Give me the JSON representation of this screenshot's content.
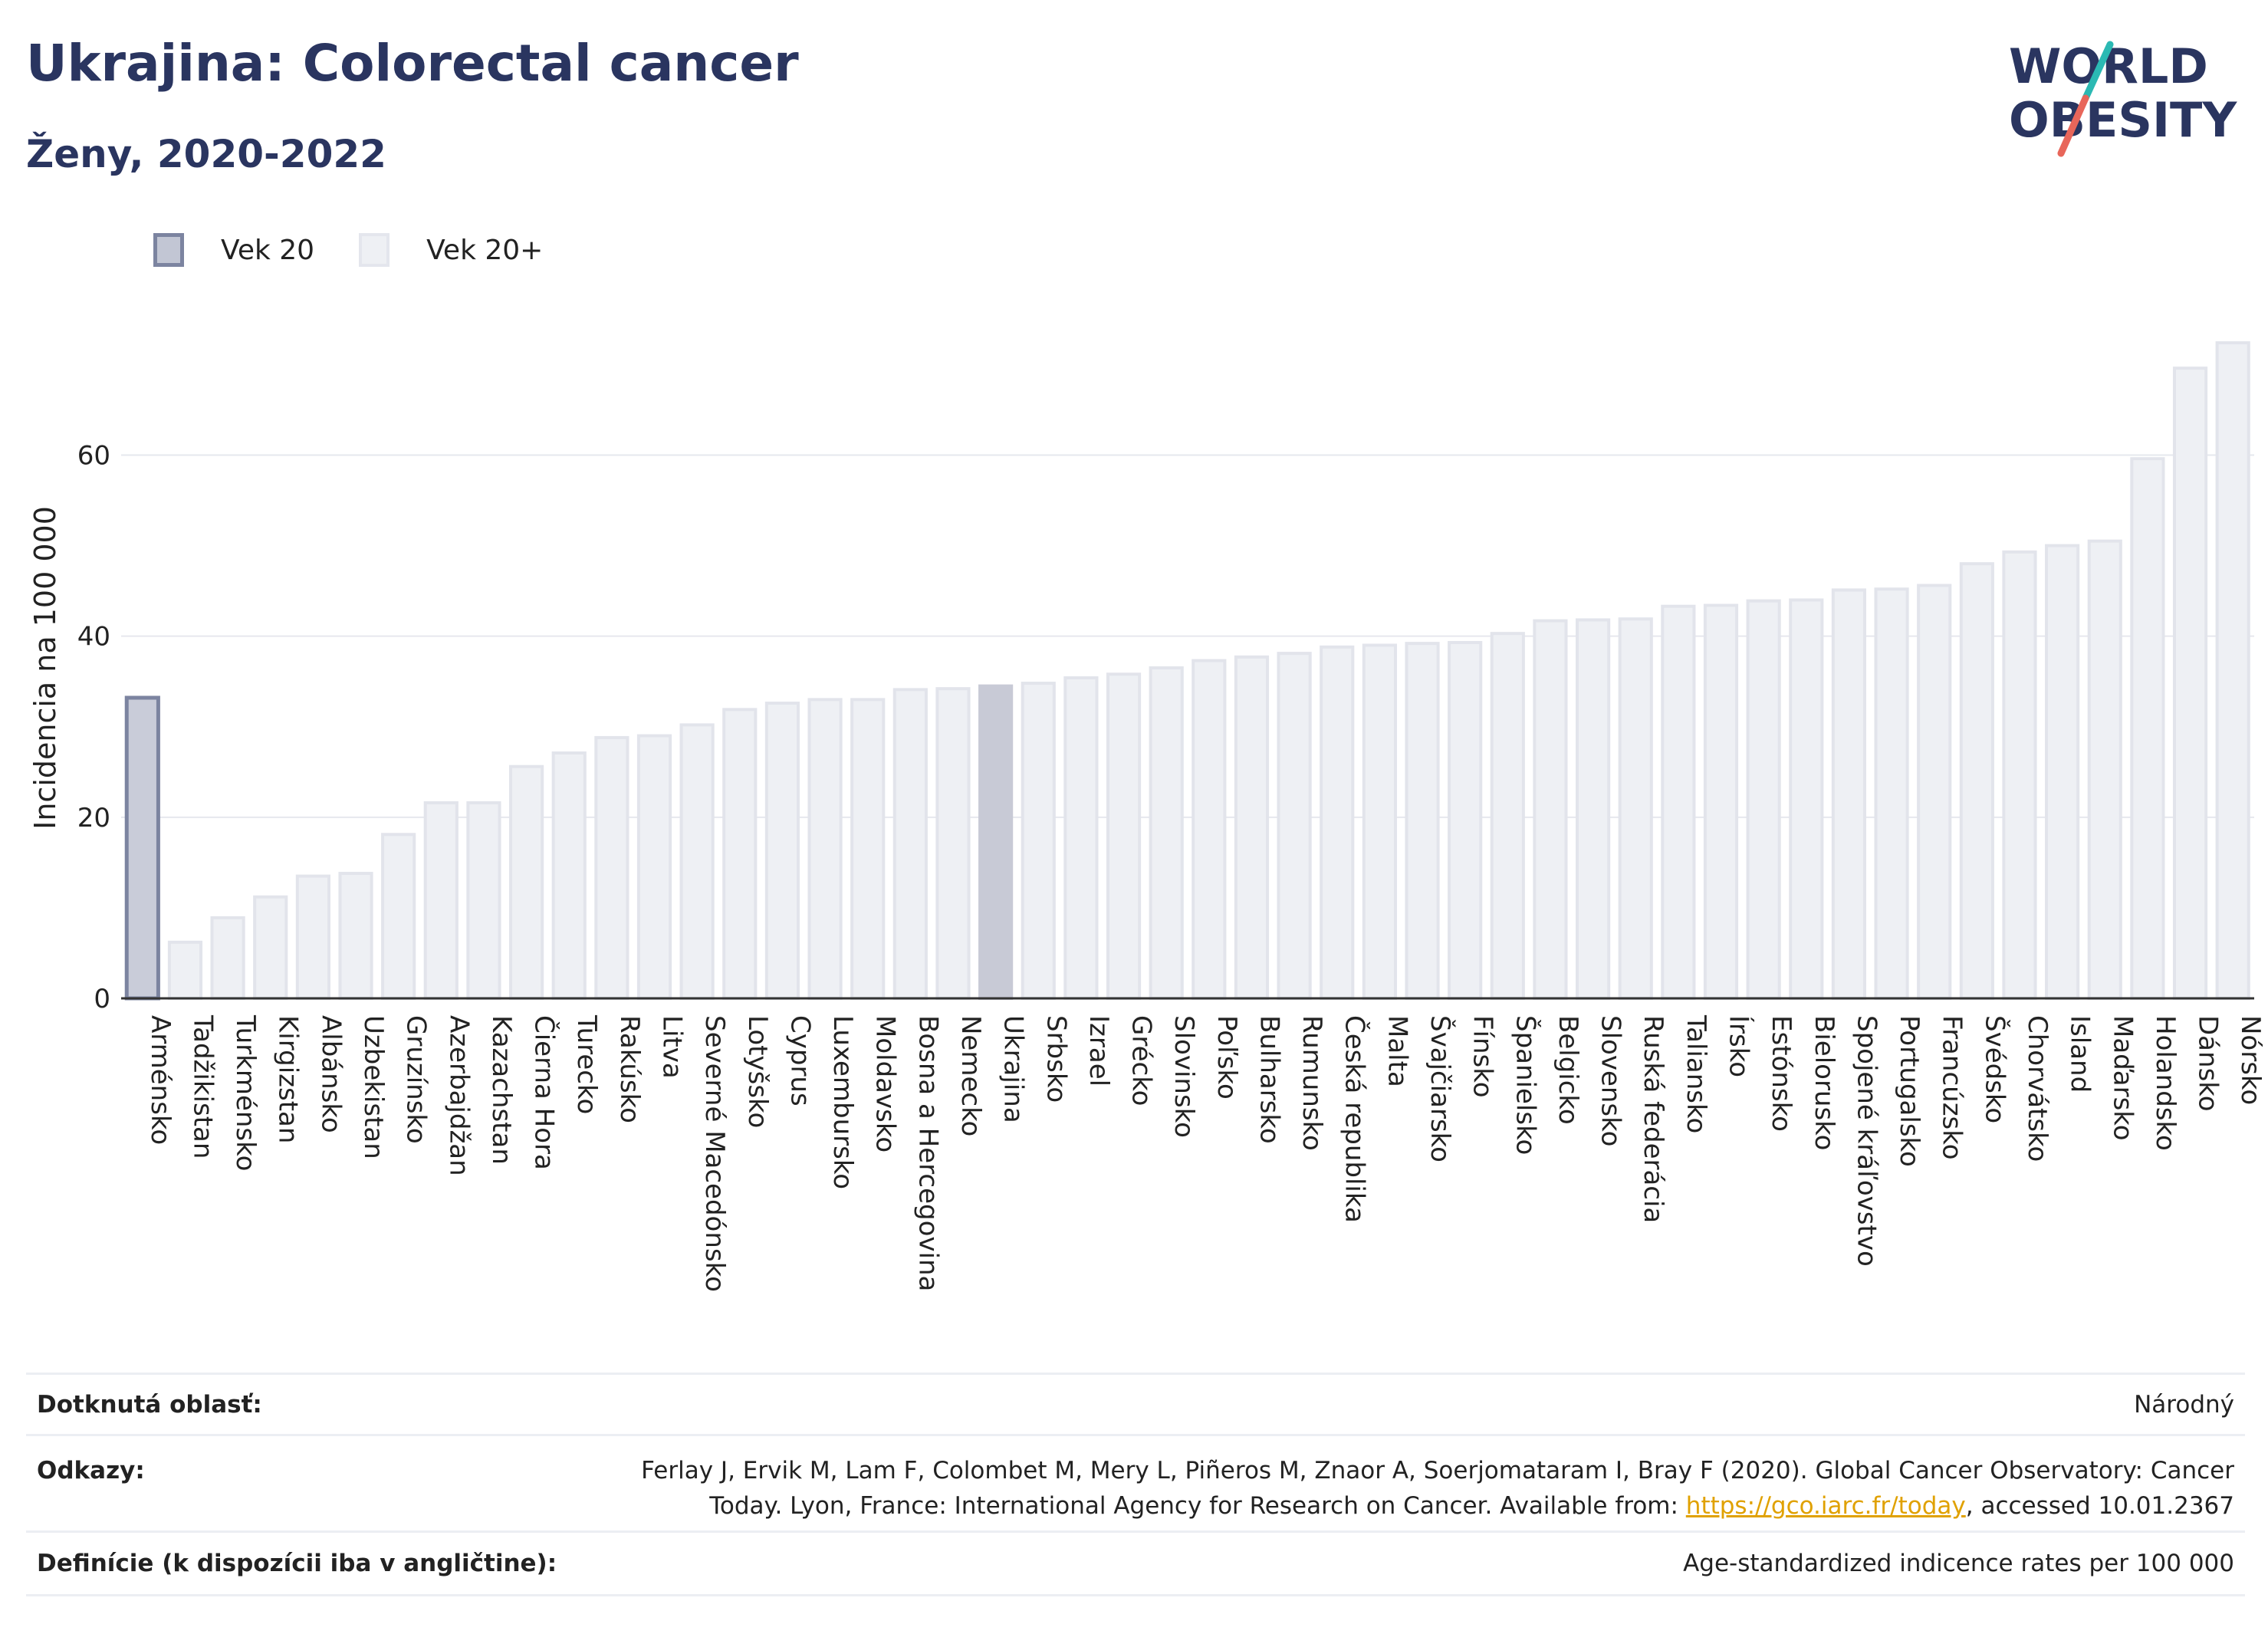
{
  "title": "Ukrajina: Colorectal cancer",
  "subtitle": "Ženy, 2020-2022",
  "logo": {
    "line1": "WORLD",
    "line2": "OBESITY",
    "accent_colors": [
      "#2bb9b3",
      "#e8665a"
    ],
    "text_color": "#2a3560"
  },
  "legend": {
    "items": [
      {
        "label": "Vek 20",
        "color": "#c2c6d4"
      },
      {
        "label": "Vek 20+",
        "color": "#eef0f4"
      }
    ]
  },
  "chart_data": {
    "type": "bar",
    "ylabel": "Incidencia na 100 000",
    "ylim": [
      0,
      73
    ],
    "yticks": [
      0,
      20,
      40,
      60
    ],
    "grid": true,
    "highlight": "Ukrajina",
    "categories": [
      "Arménsko",
      "Tadžikistan",
      "Turkménsko",
      "Kirgizstan",
      "Albánsko",
      "Uzbekistan",
      "Gruzínsko",
      "Azerbajdžan",
      "Kazachstan",
      "Čierna Hora",
      "Turecko",
      "Rakúsko",
      "Litva",
      "Severné Macedónsko",
      "Lotyšsko",
      "Cyprus",
      "Luxembursko",
      "Moldavsko",
      "Bosna a Hercegovina",
      "Nemecko",
      "Ukrajina",
      "Srbsko",
      "Izrael",
      "Grécko",
      "Slovinsko",
      "Poľsko",
      "Bulharsko",
      "Rumunsko",
      "Česká republika",
      "Malta",
      "Švajčiarsko",
      "Fínsko",
      "Španielsko",
      "Belgicko",
      "Slovensko",
      "Ruská federácia",
      "Taliansko",
      "Írsko",
      "Estónsko",
      "Bielorusko",
      "Spojené kráľovstvo",
      "Portugalsko",
      "Francúzsko",
      "Švédsko",
      "Chorvátsko",
      "Island",
      "Maďarsko",
      "Holandsko",
      "Dánsko",
      "Nórsko"
    ],
    "series": [
      {
        "name": "Vek 20",
        "color": "#c2c6d4",
        "values": [
          33.2,
          null,
          null,
          null,
          null,
          null,
          null,
          null,
          null,
          null,
          null,
          null,
          null,
          null,
          null,
          null,
          null,
          null,
          null,
          null,
          null,
          null,
          null,
          null,
          null,
          null,
          null,
          null,
          null,
          null,
          null,
          null,
          null,
          null,
          null,
          null,
          null,
          null,
          null,
          null,
          null,
          null,
          null,
          null,
          null,
          null,
          null,
          null,
          null,
          null
        ]
      },
      {
        "name": "Vek 20+",
        "color": "#eef0f4",
        "values": [
          33.2,
          6.2,
          8.9,
          11.2,
          13.5,
          13.8,
          18.1,
          21.6,
          21.6,
          25.6,
          27.1,
          28.8,
          29.0,
          30.2,
          31.9,
          32.6,
          33.0,
          33.0,
          34.1,
          34.2,
          34.5,
          34.8,
          35.4,
          35.8,
          36.5,
          37.3,
          37.7,
          38.1,
          38.8,
          39.0,
          39.2,
          39.3,
          40.3,
          41.7,
          41.8,
          41.9,
          43.3,
          43.4,
          43.9,
          44.0,
          45.1,
          45.2,
          45.6,
          48.0,
          49.3,
          50.0,
          50.5,
          59.6,
          69.6,
          72.4
        ]
      }
    ]
  },
  "footer": {
    "rows": [
      {
        "key": "Dotknutá oblasť:",
        "value": "Národný"
      },
      {
        "key": "Odkazy:",
        "value_line1": "Ferlay J, Ervik M, Lam F, Colombet M, Mery L, Piñeros M, Znaor A, Soerjomataram I, Bray F (2020). Global Cancer Observatory: Cancer",
        "value_line2_pre": "Today. Lyon, France: International Agency for Research on Cancer. Available from: ",
        "link": "https://gco.iarc.fr/today",
        "value_line2_post": ", accessed 10.01.2367"
      },
      {
        "key": "Definície (k dispozícii iba v angličtine):",
        "value": "Age-standardized indicence rates per 100 000"
      }
    ]
  }
}
